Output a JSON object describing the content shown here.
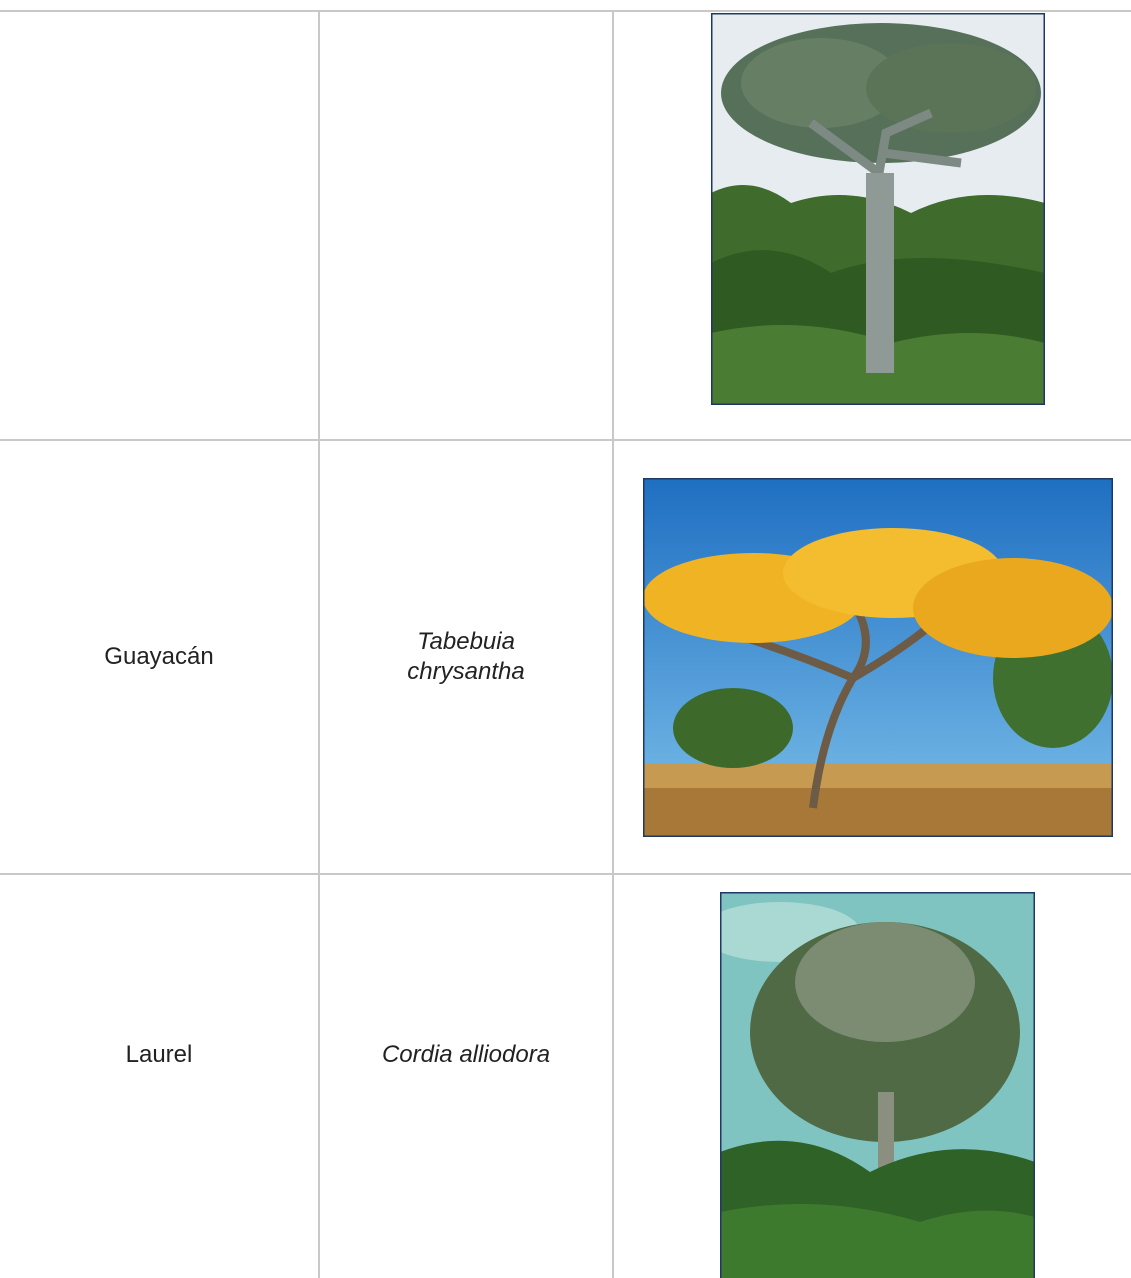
{
  "table": {
    "rows": [
      {
        "common_name": "Guayacán",
        "scientific_name": "Tabebuia chrysantha"
      },
      {
        "common_name": "Laurel",
        "scientific_name": "Cordia alliodora"
      }
    ]
  }
}
